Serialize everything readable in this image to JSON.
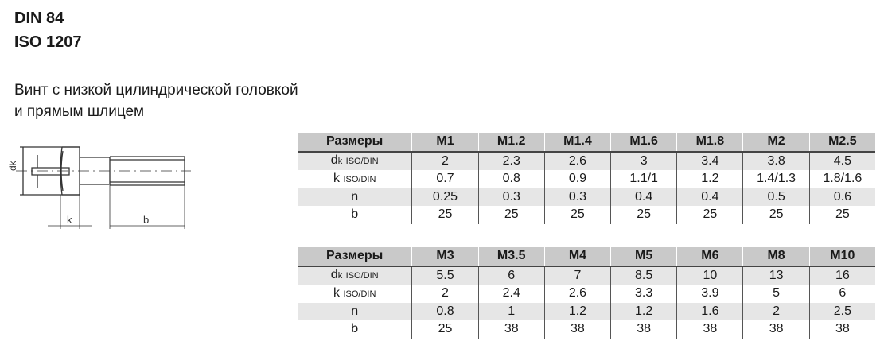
{
  "title_lines": [
    "DIN 84",
    "ISO 1207"
  ],
  "description_lines": [
    "Винт с низкой цилиндрической головкой",
    "и прямым шлицем"
  ],
  "drawing": {
    "labels": {
      "dk": "dk",
      "k": "k",
      "b": "b"
    }
  },
  "row_labels": {
    "header": "Размеры",
    "dk": {
      "main": "d",
      "sub_k": "k",
      "sub": "ISO/DIN"
    },
    "k": {
      "main": "k",
      "sub": "ISO/DIN"
    },
    "n": "n",
    "b": "b"
  },
  "tables": [
    {
      "sizes": [
        "M1",
        "M1.2",
        "M1.4",
        "M1.6",
        "M1.8",
        "M2",
        "M2.5"
      ],
      "dk": [
        "2",
        "2.3",
        "2.6",
        "3",
        "3.4",
        "3.8",
        "4.5"
      ],
      "k": [
        "0.7",
        "0.8",
        "0.9",
        "1.1/1",
        "1.2",
        "1.4/1.3",
        "1.8/1.6"
      ],
      "n": [
        "0.25",
        "0.3",
        "0.3",
        "0.4",
        "0.4",
        "0.5",
        "0.6"
      ],
      "b": [
        "25",
        "25",
        "25",
        "25",
        "25",
        "25",
        "25"
      ]
    },
    {
      "sizes": [
        "M3",
        "M3.5",
        "M4",
        "M5",
        "M6",
        "M8",
        "M10"
      ],
      "dk": [
        "5.5",
        "6",
        "7",
        "8.5",
        "10",
        "13",
        "16"
      ],
      "k": [
        "2",
        "2.4",
        "2.6",
        "3.3",
        "3.9",
        "5",
        "6"
      ],
      "n": [
        "0.8",
        "1",
        "1.2",
        "1.2",
        "1.6",
        "2",
        "2.5"
      ],
      "b": [
        "25",
        "38",
        "38",
        "38",
        "38",
        "38",
        "38"
      ]
    }
  ]
}
